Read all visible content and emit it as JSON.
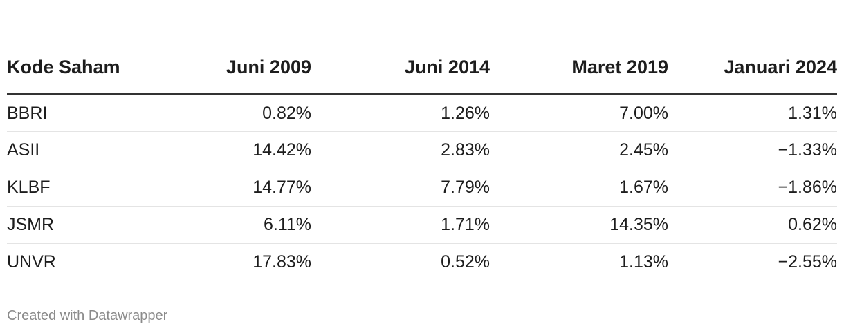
{
  "chart_data": {
    "type": "table",
    "columns": [
      "Kode Saham",
      "Juni 2009",
      "Juni 2014",
      "Maret 2019",
      "Januari 2024"
    ],
    "rows": [
      [
        "BBRI",
        "0.82%",
        "1.26%",
        "7.00%",
        "1.31%"
      ],
      [
        "ASII",
        "14.42%",
        "2.83%",
        "2.45%",
        "−1.33%"
      ],
      [
        "KLBF",
        "14.77%",
        "7.79%",
        "1.67%",
        "−1.86%"
      ],
      [
        "JSMR",
        "6.11%",
        "1.71%",
        "14.35%",
        "0.62%"
      ],
      [
        "UNVR",
        "17.83%",
        "0.52%",
        "1.13%",
        "−2.55%"
      ]
    ]
  },
  "footer": {
    "credit": "Created with Datawrapper"
  }
}
